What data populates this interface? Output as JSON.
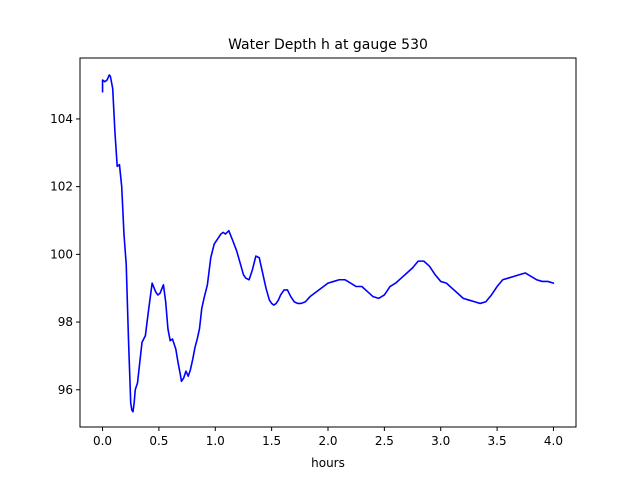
{
  "chart_data": {
    "type": "line",
    "title": "Water Depth h at gauge 530",
    "xlabel": "hours",
    "ylabel": "",
    "xlim": [
      -0.2,
      4.2
    ],
    "ylim": [
      94.9,
      105.8
    ],
    "xticks": [
      0.0,
      0.5,
      1.0,
      1.5,
      2.0,
      2.5,
      3.0,
      3.5,
      4.0
    ],
    "xtick_labels": [
      "0.0",
      "0.5",
      "1.0",
      "1.5",
      "2.0",
      "2.5",
      "3.0",
      "3.5",
      "4.0"
    ],
    "yticks": [
      96,
      98,
      100,
      102,
      104
    ],
    "ytick_labels": [
      "96",
      "98",
      "100",
      "102",
      "104"
    ],
    "grid": false,
    "series": [
      {
        "color": "#0000ff",
        "x": [
          0.0,
          0.0,
          0.02,
          0.04,
          0.06,
          0.07,
          0.09,
          0.11,
          0.13,
          0.15,
          0.17,
          0.19,
          0.21,
          0.23,
          0.25,
          0.26,
          0.27,
          0.28,
          0.29,
          0.3,
          0.31,
          0.33,
          0.35,
          0.38,
          0.41,
          0.44,
          0.47,
          0.49,
          0.51,
          0.54,
          0.56,
          0.58,
          0.6,
          0.62,
          0.65,
          0.67,
          0.69,
          0.7,
          0.72,
          0.74,
          0.76,
          0.78,
          0.8,
          0.82,
          0.84,
          0.86,
          0.88,
          0.9,
          0.93,
          0.96,
          0.99,
          1.02,
          1.05,
          1.07,
          1.09,
          1.12,
          1.15,
          1.19,
          1.22,
          1.25,
          1.27,
          1.3,
          1.33,
          1.36,
          1.39,
          1.42,
          1.45,
          1.48,
          1.5,
          1.52,
          1.54,
          1.56,
          1.58,
          1.61,
          1.64,
          1.67,
          1.7,
          1.73,
          1.76,
          1.8,
          1.84,
          1.88,
          1.92,
          1.96,
          2.0,
          2.05,
          2.1,
          2.15,
          2.2,
          2.25,
          2.3,
          2.35,
          2.4,
          2.45,
          2.5,
          2.55,
          2.6,
          2.65,
          2.7,
          2.75,
          2.8,
          2.85,
          2.9,
          2.95,
          3.0,
          3.05,
          3.1,
          3.15,
          3.2,
          3.25,
          3.3,
          3.35,
          3.4,
          3.45,
          3.5,
          3.55,
          3.6,
          3.65,
          3.7,
          3.75,
          3.8,
          3.85,
          3.9,
          3.95,
          4.0
        ],
        "y": [
          104.8,
          105.15,
          105.1,
          105.15,
          105.3,
          105.25,
          104.9,
          103.6,
          102.6,
          102.65,
          102.0,
          100.6,
          99.7,
          97.5,
          95.6,
          95.4,
          95.35,
          95.6,
          96.0,
          96.1,
          96.2,
          96.8,
          97.4,
          97.6,
          98.4,
          99.15,
          98.9,
          98.8,
          98.85,
          99.1,
          98.6,
          97.8,
          97.45,
          97.5,
          97.2,
          96.8,
          96.45,
          96.25,
          96.35,
          96.55,
          96.4,
          96.6,
          96.9,
          97.25,
          97.5,
          97.8,
          98.4,
          98.7,
          99.1,
          99.9,
          100.3,
          100.45,
          100.6,
          100.65,
          100.6,
          100.7,
          100.45,
          100.1,
          99.75,
          99.4,
          99.3,
          99.25,
          99.55,
          99.95,
          99.9,
          99.45,
          99.0,
          98.65,
          98.55,
          98.5,
          98.55,
          98.65,
          98.8,
          98.95,
          98.95,
          98.75,
          98.6,
          98.55,
          98.55,
          98.6,
          98.75,
          98.85,
          98.95,
          99.05,
          99.15,
          99.2,
          99.25,
          99.25,
          99.15,
          99.05,
          99.05,
          98.9,
          98.75,
          98.7,
          98.8,
          99.05,
          99.15,
          99.3,
          99.45,
          99.6,
          99.8,
          99.8,
          99.65,
          99.4,
          99.2,
          99.15,
          99.0,
          98.85,
          98.7,
          98.65,
          98.6,
          98.55,
          98.6,
          98.8,
          99.05,
          99.25,
          99.3,
          99.35,
          99.4,
          99.45,
          99.35,
          99.25,
          99.2,
          99.2,
          99.15
        ]
      }
    ]
  }
}
